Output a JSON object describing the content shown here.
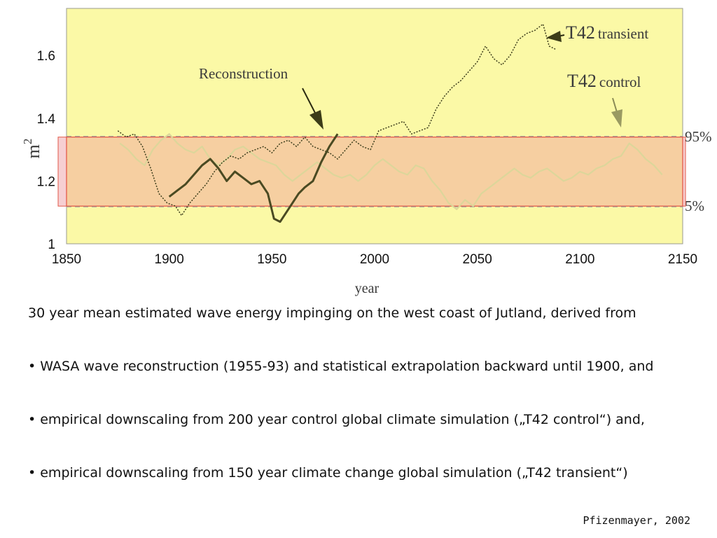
{
  "chart_data": {
    "type": "line",
    "title": "",
    "xlabel": "year",
    "ylabel": "m",
    "ylabel_superscript": "2",
    "xlim": [
      1850,
      2150
    ],
    "ylim": [
      1.0,
      1.75
    ],
    "xticks": [
      1850,
      1900,
      1950,
      2000,
      2050,
      2100,
      2150
    ],
    "xtick_labels": [
      "1850",
      "1900",
      "1950",
      "2000",
      "2050",
      "2100",
      "2150"
    ],
    "yticks": [
      1.0,
      1.2,
      1.4,
      1.6
    ],
    "ytick_labels": [
      "1",
      "1.2",
      "1.4",
      "1.6"
    ],
    "band": {
      "lower": 1.12,
      "upper": 1.34,
      "lower_label": "5%",
      "upper_label": "95%"
    },
    "annotations": {
      "reconstruction": "Reconstruction",
      "t42_label": "T42",
      "transient_word": "transient",
      "control_word": "control"
    },
    "series": [
      {
        "name": "T42 transient",
        "style": "dotted",
        "x": [
          1875,
          1879,
          1883,
          1887,
          1891,
          1895,
          1899,
          1903,
          1906,
          1910,
          1914,
          1918,
          1922,
          1926,
          1930,
          1934,
          1938,
          1942,
          1946,
          1950,
          1954,
          1958,
          1962,
          1966,
          1970,
          1974,
          1978,
          1982,
          1986,
          1990,
          1994,
          1998,
          2002,
          2006,
          2010,
          2014,
          2018,
          2022,
          2026,
          2030,
          2034,
          2038,
          2042,
          2046,
          2050,
          2054,
          2058,
          2062,
          2066,
          2070,
          2074,
          2078,
          2082,
          2085,
          2088
        ],
        "y": [
          1.36,
          1.34,
          1.35,
          1.31,
          1.24,
          1.16,
          1.13,
          1.12,
          1.09,
          1.13,
          1.16,
          1.19,
          1.23,
          1.26,
          1.28,
          1.27,
          1.29,
          1.3,
          1.31,
          1.29,
          1.32,
          1.33,
          1.31,
          1.34,
          1.31,
          1.3,
          1.29,
          1.27,
          1.3,
          1.33,
          1.31,
          1.3,
          1.36,
          1.37,
          1.38,
          1.39,
          1.35,
          1.36,
          1.37,
          1.43,
          1.47,
          1.5,
          1.52,
          1.55,
          1.58,
          1.63,
          1.59,
          1.57,
          1.6,
          1.65,
          1.67,
          1.68,
          1.7,
          1.63,
          1.62
        ]
      },
      {
        "name": "Reconstruction",
        "style": "solid",
        "x": [
          1900,
          1904,
          1908,
          1912,
          1916,
          1920,
          1924,
          1928,
          1932,
          1936,
          1940,
          1944,
          1948,
          1951,
          1954,
          1957,
          1960,
          1963,
          1966,
          1970,
          1974,
          1978,
          1982
        ],
        "y": [
          1.15,
          1.17,
          1.19,
          1.22,
          1.25,
          1.27,
          1.24,
          1.2,
          1.23,
          1.21,
          1.19,
          1.2,
          1.16,
          1.08,
          1.07,
          1.1,
          1.13,
          1.16,
          1.18,
          1.2,
          1.26,
          1.31,
          1.35
        ]
      },
      {
        "name": "T42 control",
        "style": "faint",
        "x": [
          1876,
          1880,
          1884,
          1888,
          1892,
          1896,
          1900,
          1904,
          1908,
          1912,
          1916,
          1920,
          1924,
          1928,
          1932,
          1936,
          1940,
          1944,
          1948,
          1952,
          1956,
          1960,
          1964,
          1968,
          1972,
          1976,
          1980,
          1984,
          1988,
          1992,
          1996,
          2000,
          2004,
          2008,
          2012,
          2016,
          2020,
          2024,
          2028,
          2032,
          2036,
          2040,
          2044,
          2048,
          2052,
          2056,
          2060,
          2064,
          2068,
          2072,
          2076,
          2080,
          2084,
          2088,
          2092,
          2096,
          2100,
          2104,
          2108,
          2112,
          2116,
          2120,
          2124,
          2128,
          2132,
          2136,
          2140
        ],
        "y": [
          1.32,
          1.3,
          1.27,
          1.25,
          1.3,
          1.33,
          1.35,
          1.32,
          1.3,
          1.29,
          1.31,
          1.27,
          1.25,
          1.27,
          1.3,
          1.31,
          1.29,
          1.27,
          1.26,
          1.25,
          1.22,
          1.2,
          1.22,
          1.24,
          1.26,
          1.24,
          1.22,
          1.21,
          1.22,
          1.2,
          1.22,
          1.25,
          1.27,
          1.25,
          1.23,
          1.22,
          1.25,
          1.24,
          1.2,
          1.17,
          1.13,
          1.11,
          1.14,
          1.12,
          1.16,
          1.18,
          1.2,
          1.22,
          1.24,
          1.22,
          1.21,
          1.23,
          1.24,
          1.22,
          1.2,
          1.21,
          1.23,
          1.22,
          1.24,
          1.25,
          1.27,
          1.28,
          1.32,
          1.3,
          1.27,
          1.25,
          1.22
        ]
      }
    ]
  },
  "caption": {
    "intro": "30 year mean estimated wave energy impinging on the west coast of Jutland, derived from",
    "bullets": [
      "• WASA wave reconstruction (1955-93) and statistical extrapolation backward until 1900, and",
      "• empirical downscaling from 200 year control global climate simulation („T42 control“) and,",
      "• empirical downscaling from 150 year climate change global simulation („T42 transient“)"
    ]
  },
  "credit": "Pfizenmayer, 2002",
  "colors": {
    "plot_bg": "#fbf9a6",
    "band_fill": "#f5c8a0",
    "band_edge": "#e35a4a",
    "band_outside": "#f6cfd2",
    "reconstruction": "#4a4a22",
    "transient": "#3e3e1c",
    "control": "#dcd69a"
  }
}
